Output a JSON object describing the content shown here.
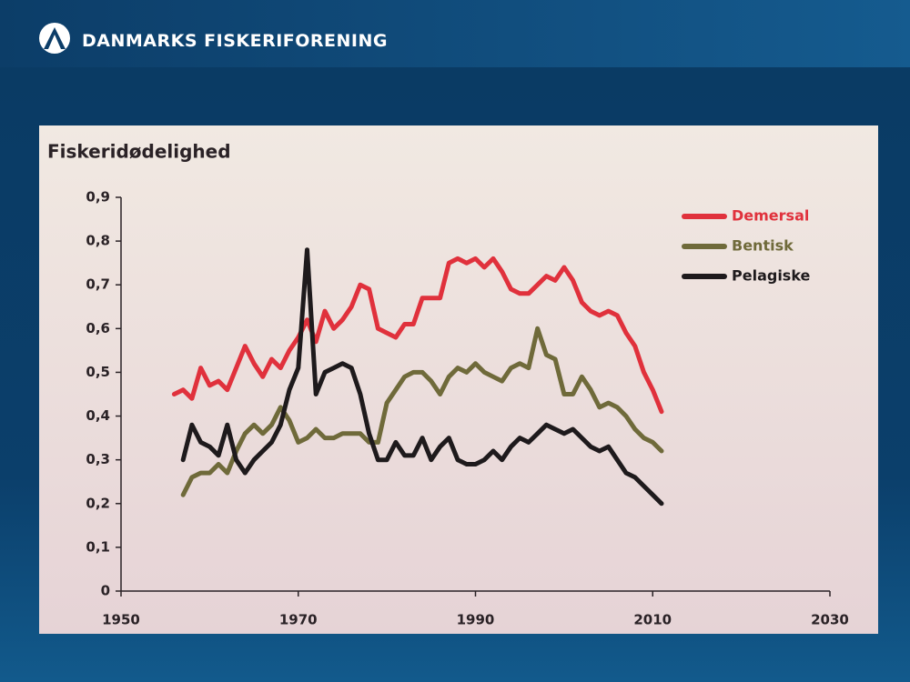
{
  "header": {
    "title": "DANMARKS FISKERIFORENING"
  },
  "chart_data": {
    "type": "line",
    "title": "Fiskeridødelighed",
    "x": [
      1956,
      1957,
      1958,
      1959,
      1960,
      1961,
      1962,
      1963,
      1964,
      1965,
      1966,
      1967,
      1968,
      1969,
      1970,
      1971,
      1972,
      1973,
      1974,
      1975,
      1976,
      1977,
      1978,
      1979,
      1980,
      1981,
      1982,
      1983,
      1984,
      1985,
      1986,
      1987,
      1988,
      1989,
      1990,
      1991,
      1992,
      1993,
      1994,
      1995,
      1996,
      1997,
      1998,
      1999,
      2000,
      2001,
      2002,
      2003,
      2004,
      2005,
      2006,
      2007,
      2008,
      2009,
      2010,
      2011
    ],
    "series": [
      {
        "name": "Demersal",
        "color": "#e0313c",
        "values": [
          0.45,
          0.46,
          0.44,
          0.51,
          0.47,
          0.48,
          0.46,
          0.51,
          0.56,
          0.52,
          0.49,
          0.53,
          0.51,
          0.55,
          0.58,
          0.62,
          0.57,
          0.64,
          0.6,
          0.62,
          0.65,
          0.7,
          0.69,
          0.6,
          0.59,
          0.58,
          0.61,
          0.61,
          0.67,
          0.67,
          0.67,
          0.75,
          0.76,
          0.75,
          0.76,
          0.74,
          0.76,
          0.73,
          0.69,
          0.68,
          0.68,
          0.7,
          0.72,
          0.71,
          0.74,
          0.71,
          0.66,
          0.64,
          0.63,
          0.64,
          0.63,
          0.59,
          0.56,
          0.5,
          0.46,
          0.41
        ]
      },
      {
        "name": "Bentisk",
        "color": "#6f6a3a",
        "values": [
          null,
          0.22,
          0.26,
          0.27,
          0.27,
          0.29,
          0.27,
          0.32,
          0.36,
          0.38,
          0.36,
          0.38,
          0.42,
          0.39,
          0.34,
          0.35,
          0.37,
          0.35,
          0.35,
          0.36,
          0.36,
          0.36,
          0.34,
          0.34,
          0.43,
          0.46,
          0.49,
          0.5,
          0.5,
          0.48,
          0.45,
          0.49,
          0.51,
          0.5,
          0.52,
          0.5,
          0.49,
          0.48,
          0.51,
          0.52,
          0.51,
          0.6,
          0.54,
          0.53,
          0.45,
          0.45,
          0.49,
          0.46,
          0.42,
          0.43,
          0.42,
          0.4,
          0.37,
          0.35,
          0.34,
          0.32
        ]
      },
      {
        "name": "Pelagiske",
        "color": "#1e1a1c",
        "values": [
          null,
          0.3,
          0.38,
          0.34,
          0.33,
          0.31,
          0.38,
          0.3,
          0.27,
          0.3,
          0.32,
          0.34,
          0.38,
          0.46,
          0.51,
          0.78,
          0.45,
          0.5,
          0.51,
          0.52,
          0.51,
          0.45,
          0.36,
          0.3,
          0.3,
          0.34,
          0.31,
          0.31,
          0.35,
          0.3,
          0.33,
          0.35,
          0.3,
          0.29,
          0.29,
          0.3,
          0.32,
          0.3,
          0.33,
          0.35,
          0.34,
          0.36,
          0.38,
          0.37,
          0.36,
          0.37,
          0.35,
          0.33,
          0.32,
          0.33,
          0.3,
          0.27,
          0.26,
          0.24,
          0.22,
          0.2
        ]
      }
    ],
    "xlim": [
      1950,
      2030
    ],
    "xticks": [
      1950,
      1970,
      1990,
      2010,
      2030
    ],
    "ylim": [
      0,
      0.9
    ],
    "yticks": [
      0,
      {
        "value": 0.1,
        "label": "0,1"
      },
      {
        "value": 0.2,
        "label": "0,2"
      },
      {
        "value": 0.3,
        "label": "0,3"
      },
      {
        "value": 0.4,
        "label": "0,4"
      },
      {
        "value": 0.5,
        "label": "0,5"
      },
      {
        "value": 0.6,
        "label": "0,6"
      },
      {
        "value": 0.7,
        "label": "0,7"
      },
      {
        "value": 0.8,
        "label": "0,8"
      },
      {
        "value": 0.9,
        "label": "0,9"
      }
    ],
    "grid": false,
    "legend": "top-right"
  }
}
